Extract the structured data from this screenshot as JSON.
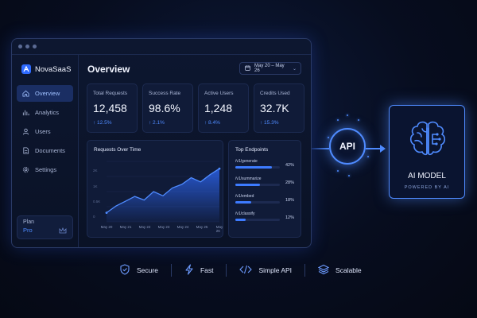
{
  "app": {
    "name": "NovaSaaS"
  },
  "sidebar": {
    "items": [
      {
        "label": "Overview",
        "icon": "home-icon",
        "active": true
      },
      {
        "label": "Analytics",
        "icon": "analytics-icon",
        "active": false
      },
      {
        "label": "Users",
        "icon": "user-icon",
        "active": false
      },
      {
        "label": "Documents",
        "icon": "document-icon",
        "active": false
      },
      {
        "label": "Settings",
        "icon": "gear-icon",
        "active": false
      }
    ],
    "plan": {
      "label": "Plan",
      "value": "Pro",
      "icon": "crown-icon"
    }
  },
  "header": {
    "title": "Overview",
    "date_range": "May 20 – May 26",
    "date_icon": "calendar-icon"
  },
  "stats": [
    {
      "label": "Total Requests",
      "value": "12,458",
      "delta": "↑ 12.5%"
    },
    {
      "label": "Success Rate",
      "value": "98.6%",
      "delta": "↑ 2.1%"
    },
    {
      "label": "Active Users",
      "value": "1,248",
      "delta": "↑ 8.4%"
    },
    {
      "label": "Credits Used",
      "value": "32.7K",
      "delta": "↑ 15.3%"
    }
  ],
  "requests_chart": {
    "title": "Requests Over Time",
    "y_ticks": [
      "2K",
      "1K",
      "0.5K",
      "0"
    ],
    "x_ticks": [
      "May 20",
      "May 21",
      "May 22",
      "May 23",
      "May 24",
      "May 25",
      "May 26"
    ]
  },
  "chart_data": {
    "type": "area",
    "title": "Requests Over Time",
    "x": [
      "May 20",
      "May 20.5",
      "May 21",
      "May 21.5",
      "May 22",
      "May 22.5",
      "May 23",
      "May 23.5",
      "May 24",
      "May 24.5",
      "May 25",
      "May 25.5",
      "May 26"
    ],
    "categories": [
      "May 20",
      "May 21",
      "May 22",
      "May 23",
      "May 24",
      "May 25",
      "May 26"
    ],
    "values": [
      300,
      520,
      680,
      840,
      720,
      1000,
      860,
      1120,
      1240,
      1460,
      1320,
      1560,
      1760
    ],
    "ylim": [
      0,
      2000
    ]
  },
  "endpoints": {
    "title": "Top Endpoints",
    "items": [
      {
        "name": "/v1/generate",
        "pct": "42%",
        "fraction": 0.82
      },
      {
        "name": "/v1/summarize",
        "pct": "28%",
        "fraction": 0.55
      },
      {
        "name": "/v1/embed",
        "pct": "18%",
        "fraction": 0.36
      },
      {
        "name": "/v1/classify",
        "pct": "12%",
        "fraction": 0.24
      }
    ]
  },
  "api": {
    "label": "API"
  },
  "ai_model": {
    "title": "AI MODEL",
    "subtitle": "POWERED BY AI",
    "icon": "brain-icon"
  },
  "features": [
    {
      "label": "Secure",
      "icon": "shield-check-icon"
    },
    {
      "label": "Fast",
      "icon": "lightning-icon"
    },
    {
      "label": "Simple API",
      "icon": "code-icon"
    },
    {
      "label": "Scalable",
      "icon": "layers-icon"
    }
  ],
  "colors": {
    "accent": "#4f8bff",
    "background": "#070d1f",
    "panel": "#101b38"
  }
}
